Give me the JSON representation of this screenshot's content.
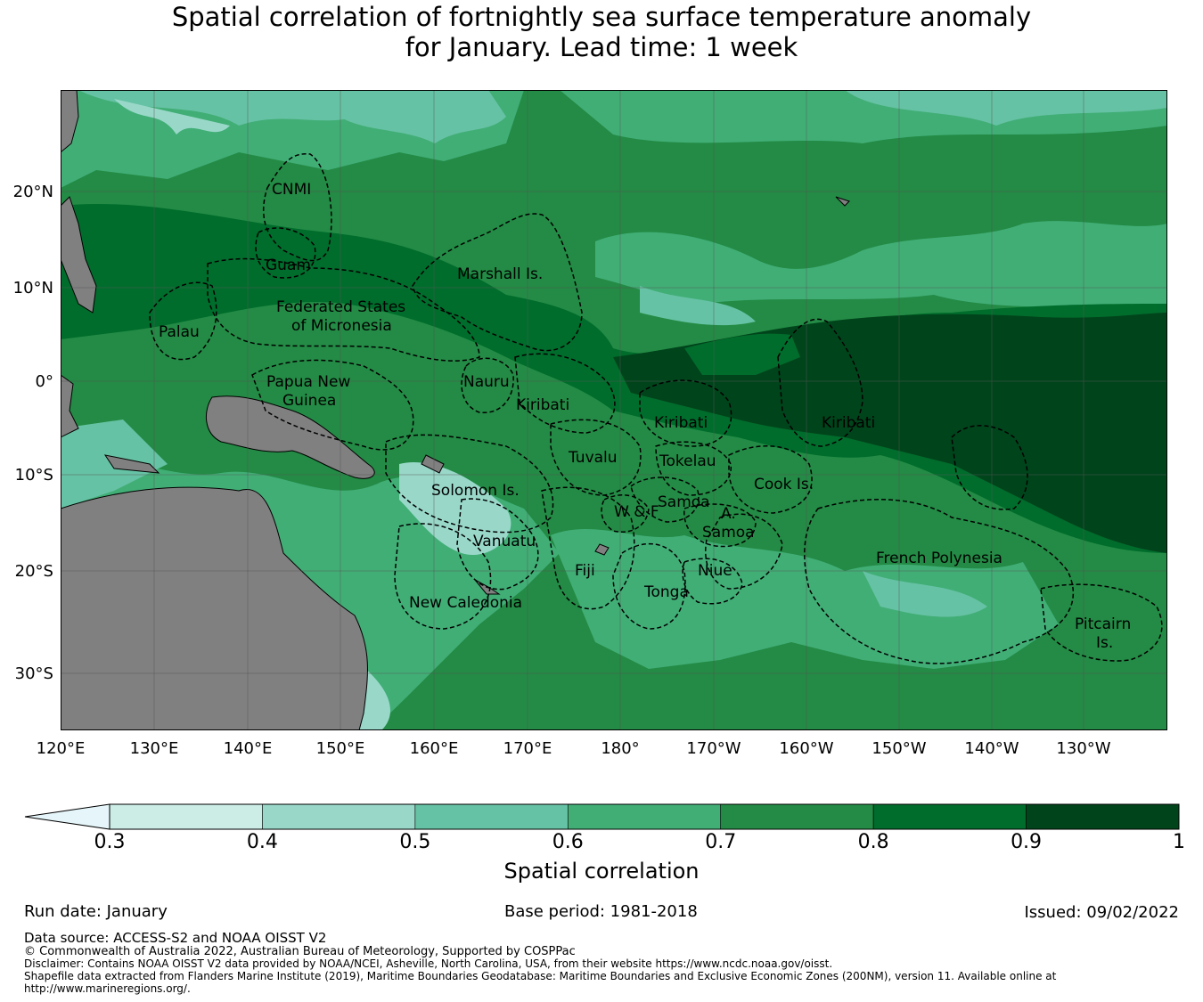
{
  "title_line1": "Spatial correlation of fortnightly sea surface temperature anomaly",
  "title_line2": "for January. Lead time: 1 week",
  "lat_labels": [
    "20°N",
    "10°N",
    "0°",
    "10°S",
    "20°S",
    "30°S"
  ],
  "lon_labels": [
    "120°E",
    "130°E",
    "140°E",
    "150°E",
    "160°E",
    "170°E",
    "180°",
    "170°W",
    "160°W",
    "150°W",
    "140°W",
    "130°W"
  ],
  "region_labels": {
    "cnmi": "CNMI",
    "guam": "Guam",
    "marshall": "Marshall Is.",
    "fsm1": "Federated States",
    "fsm2": "of Micronesia",
    "palau": "Palau",
    "png1": "Papua New",
    "png2": "Guinea",
    "nauru": "Nauru",
    "kiribati_w": "Kiribati",
    "kiribati_c": "Kiribati",
    "kiribati_e": "Kiribati",
    "tuvalu": "Tuvalu",
    "tokelau": "Tokelau",
    "solomon": "Solomon Is.",
    "samoa": "Samoa",
    "wf": "W & F",
    "as1": "A.",
    "as2": "Samoa",
    "cook": "Cook Is.",
    "vanuatu": "Vanuatu",
    "fiji": "Fiji",
    "niue": "Niue",
    "tonga": "Tonga",
    "new_caledonia": "New Caledonia",
    "french_polynesia": "French Polynesia",
    "pitcairn1": "Pitcairn",
    "pitcairn2": "Is."
  },
  "colorbar": {
    "ticks": [
      "0.3",
      "0.4",
      "0.5",
      "0.6",
      "0.7",
      "0.8",
      "0.9",
      "1"
    ],
    "colors": [
      "#e5f5f9",
      "#ccece6",
      "#99d8c9",
      "#66c2a4",
      "#41ae76",
      "#238b45",
      "#006d2c",
      "#00441b"
    ],
    "label": "Spatial correlation"
  },
  "colors": {
    "land": "#808080",
    "boundary": "#000000"
  },
  "footer": {
    "run_date": "Run date: January",
    "base_period": "Base period: 1981-2018",
    "issued": "Issued: 09/02/2022",
    "data_source": "Data source: ACCESS-S2 and NOAA OISST V2",
    "copyright": "© Commonwealth of Australia 2022, Australian Bureau of Meteorology, Supported by COSPPac",
    "disclaimer": "Disclaimer: Contains NOAA OISST V2 data provided by NOAA/NCEI, Asheville, North Carolina, USA, from their website https://www.ncdc.noaa.gov/oisst.",
    "shapefile1": "Shapefile data extracted from Flanders Marine Institute (2019), Maritime Boundaries Geodatabase: Maritime Boundaries and Exclusive Economic Zones (200NM), version 11. Available online at",
    "shapefile2": "http://www.marineregions.org/."
  }
}
